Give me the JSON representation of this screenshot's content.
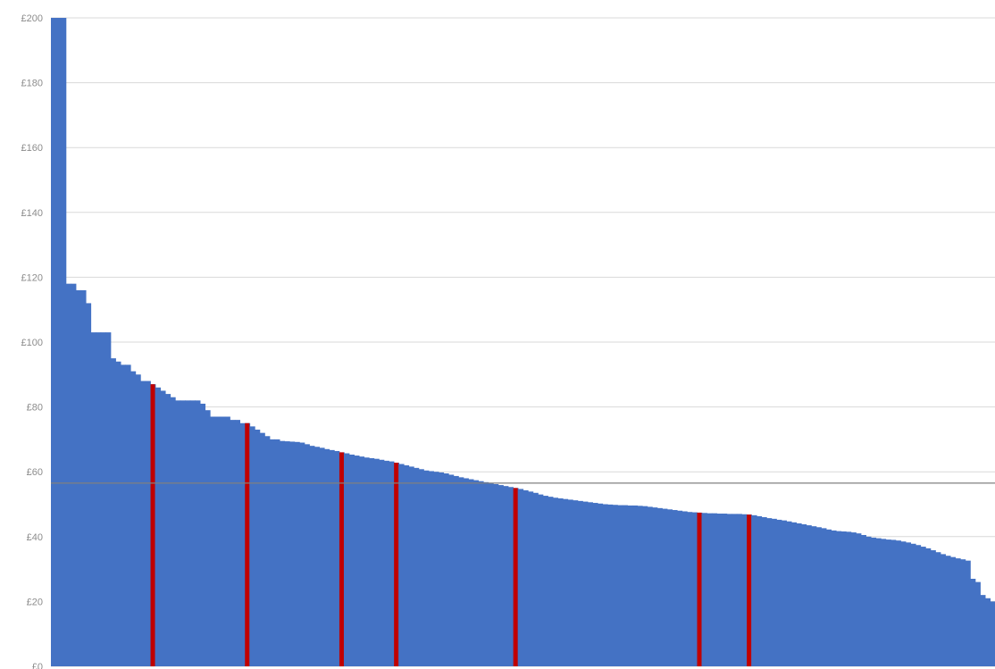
{
  "chart_data": {
    "type": "bar",
    "title": "",
    "xlabel": "",
    "ylabel": "",
    "ylim": [
      0,
      200
    ],
    "y_ticks": [
      "£0",
      "£20",
      "£40",
      "£60",
      "£80",
      "£100",
      "£120",
      "£140",
      "£160",
      "£180",
      "£200"
    ],
    "grid": true,
    "bar_color": "#4472c4",
    "highlight_color": "#c00000",
    "reference_line_color": "#808080",
    "reference_line_value": 56.5,
    "series": [
      {
        "values": [
          200,
          200,
          200,
          118,
          118,
          116,
          116,
          112,
          103,
          103,
          103,
          103,
          95,
          94,
          93,
          93,
          91,
          90,
          88,
          88,
          87,
          86,
          85,
          84,
          83,
          82,
          82,
          82,
          82,
          82,
          81,
          79,
          77,
          77,
          77,
          77,
          76,
          76,
          75,
          75,
          74,
          73,
          72,
          71,
          70,
          70,
          69.5,
          69.4,
          69.3,
          69.2,
          69,
          68.5,
          68,
          67.7,
          67.4,
          67,
          66.7,
          66.4,
          66,
          65.7,
          65.3,
          65,
          64.7,
          64.4,
          64.2,
          64,
          63.7,
          63.4,
          63.2,
          62.8,
          62.4,
          62,
          61.6,
          61.2,
          60.8,
          60.4,
          60.2,
          60,
          59.8,
          59.5,
          59.1,
          58.7,
          58.3,
          58,
          57.7,
          57.4,
          57.1,
          56.8,
          56.5,
          56.2,
          55.9,
          55.6,
          55.3,
          55,
          54.7,
          54.3,
          53.9,
          53.5,
          53,
          52.6,
          52.3,
          52,
          51.8,
          51.6,
          51.4,
          51.2,
          51,
          50.8,
          50.6,
          50.4,
          50.2,
          50,
          49.9,
          49.8,
          49.7,
          49.7,
          49.6,
          49.6,
          49.5,
          49.4,
          49.2,
          49,
          48.8,
          48.6,
          48.4,
          48.2,
          48,
          47.8,
          47.6,
          47.5,
          47.4,
          47.3,
          47.2,
          47.2,
          47.1,
          47.1,
          47,
          47,
          47,
          46.9,
          46.8,
          46.6,
          46.3,
          46,
          45.7,
          45.5,
          45.2,
          45,
          44.7,
          44.4,
          44.1,
          43.8,
          43.5,
          43.2,
          42.9,
          42.6,
          42.2,
          41.9,
          41.7,
          41.6,
          41.5,
          41.3,
          41,
          40.5,
          40,
          39.7,
          39.5,
          39.3,
          39.1,
          39,
          38.8,
          38.5,
          38.2,
          37.8,
          37.4,
          36.9,
          36.4,
          35.8,
          35.2,
          34.6,
          34.1,
          33.7,
          33.3,
          33,
          32.6,
          27,
          26,
          22,
          21,
          20
        ],
        "highlight_indices": [
          20,
          39,
          58,
          69,
          93,
          130,
          140
        ]
      }
    ]
  }
}
